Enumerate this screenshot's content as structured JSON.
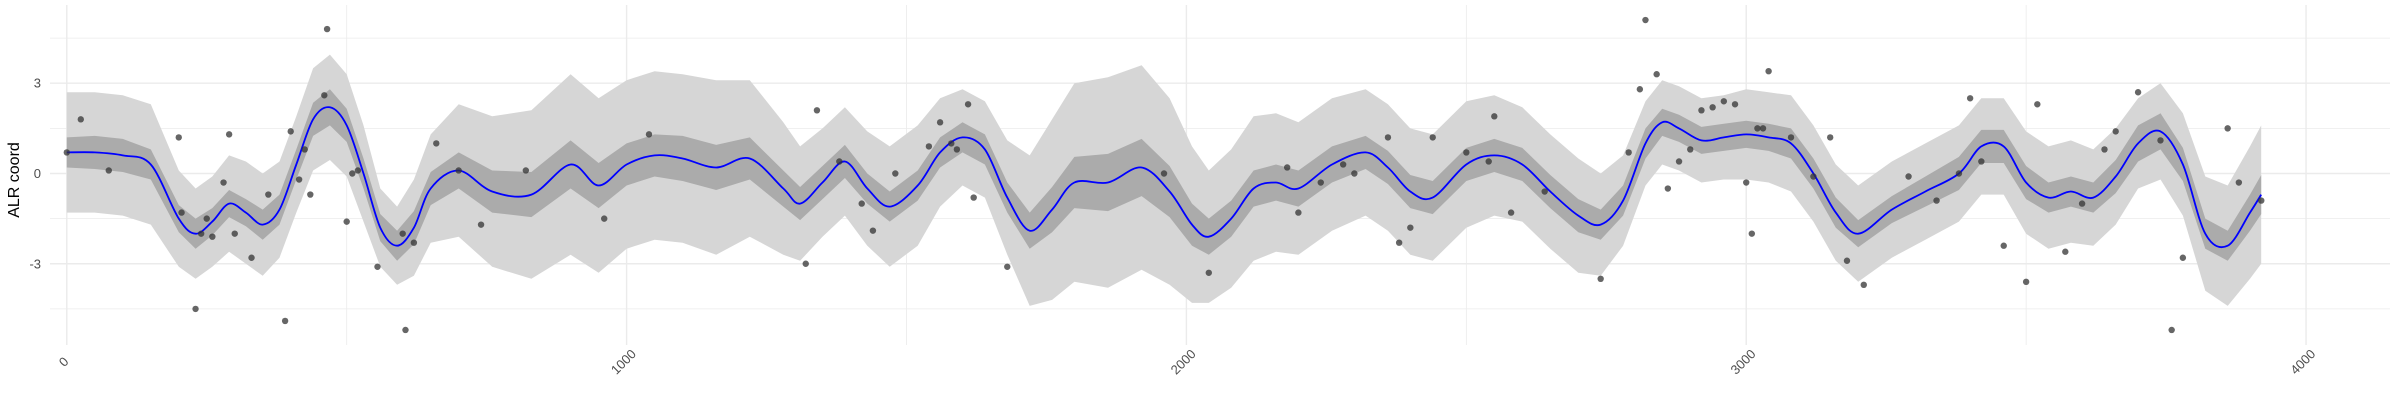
{
  "chart_data": {
    "type": "line",
    "title": "",
    "xlabel": "",
    "ylabel": "ALR coord",
    "xlim": [
      -30,
      4150
    ],
    "ylim": [
      -5.7,
      5.6
    ],
    "x_ticks": [
      0,
      1000,
      2000,
      3000,
      4000
    ],
    "x_tick_labels": [
      "0",
      "1000",
      "2000",
      "3000",
      "4000"
    ],
    "y_ticks": [
      -3,
      0,
      3
    ],
    "y_tick_labels": [
      "-3",
      "0",
      "3"
    ],
    "grid": true,
    "legend": "none",
    "colors": {
      "line": "#0000ff",
      "inner_band": "#ababab",
      "outer_band": "#d6d6d6",
      "points": "#333333",
      "grid": "#ebebeb"
    },
    "series": [
      {
        "kind": "mean",
        "x": [
          0,
          50,
          100,
          150,
          200,
          230,
          260,
          290,
          320,
          350,
          380,
          410,
          440,
          470,
          500,
          530,
          560,
          590,
          620,
          650,
          700,
          760,
          830,
          900,
          950,
          1000,
          1050,
          1100,
          1160,
          1220,
          1280,
          1310,
          1350,
          1390,
          1430,
          1470,
          1520,
          1560,
          1600,
          1640,
          1680,
          1720,
          1760,
          1800,
          1860,
          1920,
          1970,
          2010,
          2040,
          2080,
          2120,
          2160,
          2200,
          2260,
          2320,
          2360,
          2400,
          2440,
          2500,
          2550,
          2600,
          2650,
          2700,
          2740,
          2780,
          2820,
          2850,
          2880,
          2920,
          2960,
          3000,
          3040,
          3080,
          3120,
          3160,
          3200,
          3260,
          3320,
          3380,
          3420,
          3460,
          3500,
          3540,
          3580,
          3620,
          3660,
          3700,
          3740,
          3780,
          3820,
          3860,
          3900,
          3920
        ],
        "y": [
          0.7,
          0.7,
          0.6,
          0.3,
          -1.5,
          -2.0,
          -1.6,
          -1.0,
          -1.3,
          -1.7,
          -1.2,
          0.3,
          1.8,
          2.2,
          1.6,
          0.0,
          -1.8,
          -2.4,
          -1.8,
          -0.5,
          0.1,
          -0.6,
          -0.7,
          0.3,
          -0.4,
          0.3,
          0.6,
          0.5,
          0.2,
          0.5,
          -0.5,
          -1.0,
          -0.3,
          0.4,
          -0.5,
          -1.1,
          -0.4,
          0.7,
          1.2,
          0.8,
          -0.8,
          -1.9,
          -1.2,
          -0.3,
          -0.3,
          0.2,
          -0.6,
          -1.7,
          -2.1,
          -1.5,
          -0.5,
          -0.3,
          -0.5,
          0.3,
          0.7,
          0.2,
          -0.6,
          -0.8,
          0.3,
          0.6,
          0.3,
          -0.6,
          -1.4,
          -1.7,
          -0.9,
          1.0,
          1.7,
          1.5,
          1.1,
          1.2,
          1.3,
          1.2,
          1.0,
          0.0,
          -1.3,
          -2.0,
          -1.2,
          -0.6,
          0.0,
          0.9,
          0.9,
          -0.3,
          -0.8,
          -0.6,
          -0.8,
          -0.1,
          1.0,
          1.4,
          0.3,
          -2.0,
          -2.4,
          -1.3,
          -0.7
        ],
        "inner_half_width": [
          0.5,
          0.55,
          0.55,
          0.5,
          0.45,
          0.5,
          0.45,
          0.45,
          0.45,
          0.5,
          0.5,
          0.5,
          0.55,
          0.6,
          0.55,
          0.5,
          0.45,
          0.5,
          0.55,
          0.55,
          0.6,
          0.7,
          0.75,
          0.8,
          0.75,
          0.7,
          0.7,
          0.75,
          0.75,
          0.7,
          0.6,
          0.55,
          0.55,
          0.55,
          0.5,
          0.5,
          0.5,
          0.5,
          0.5,
          0.5,
          0.5,
          0.6,
          0.75,
          0.85,
          0.95,
          0.95,
          0.85,
          0.7,
          0.6,
          0.6,
          0.6,
          0.6,
          0.6,
          0.6,
          0.55,
          0.55,
          0.55,
          0.55,
          0.55,
          0.55,
          0.55,
          0.55,
          0.55,
          0.5,
          0.5,
          0.5,
          0.45,
          0.45,
          0.45,
          0.45,
          0.45,
          0.45,
          0.5,
          0.5,
          0.5,
          0.45,
          0.45,
          0.5,
          0.55,
          0.55,
          0.55,
          0.55,
          0.5,
          0.5,
          0.5,
          0.55,
          0.6,
          0.6,
          0.55,
          0.5,
          0.5,
          0.6,
          0.65
        ],
        "outer_half_width": [
          2.0,
          2.0,
          2.0,
          2.0,
          1.6,
          1.5,
          1.5,
          1.6,
          1.7,
          1.7,
          1.6,
          1.6,
          1.7,
          1.75,
          1.7,
          1.6,
          1.3,
          1.3,
          1.6,
          1.8,
          2.2,
          2.5,
          2.8,
          3.0,
          2.9,
          2.8,
          2.8,
          2.8,
          2.9,
          2.6,
          2.2,
          1.9,
          1.8,
          1.8,
          1.9,
          2.0,
          2.0,
          1.8,
          1.6,
          1.6,
          1.9,
          2.5,
          3.0,
          3.3,
          3.5,
          3.4,
          3.1,
          2.6,
          2.2,
          2.3,
          2.4,
          2.3,
          2.2,
          2.2,
          2.1,
          2.1,
          2.1,
          2.1,
          2.1,
          2.0,
          1.9,
          1.9,
          1.9,
          1.7,
          1.5,
          1.4,
          1.4,
          1.4,
          1.4,
          1.4,
          1.5,
          1.5,
          1.6,
          1.6,
          1.6,
          1.6,
          1.6,
          1.6,
          1.6,
          1.6,
          1.6,
          1.7,
          1.7,
          1.7,
          1.6,
          1.6,
          1.5,
          1.6,
          1.7,
          1.9,
          2.0,
          2.2,
          2.3
        ]
      },
      {
        "kind": "observations",
        "x": [
          0,
          25,
          75,
          200,
          205,
          230,
          240,
          250,
          260,
          280,
          290,
          300,
          330,
          360,
          390,
          400,
          415,
          425,
          435,
          460,
          465,
          500,
          510,
          520,
          555,
          600,
          605,
          620,
          660,
          700,
          740,
          820,
          960,
          1040,
          1320,
          1340,
          1380,
          1420,
          1440,
          1480,
          1540,
          1560,
          1580,
          1590,
          1610,
          1620,
          1680,
          1960,
          2040,
          2180,
          2200,
          2240,
          2280,
          2300,
          2360,
          2380,
          2400,
          2440,
          2500,
          2540,
          2550,
          2580,
          2640,
          2740,
          2790,
          2810,
          2820,
          2840,
          2860,
          2880,
          2900,
          2920,
          2940,
          2960,
          2980,
          3000,
          3010,
          3020,
          3030,
          3040,
          3080,
          3120,
          3150,
          3180,
          3210,
          3290,
          3340,
          3380,
          3400,
          3420,
          3460,
          3500,
          3520,
          3570,
          3600,
          3640,
          3660,
          3700,
          3740,
          3760,
          3780,
          3860,
          3880,
          3920
        ],
        "y": [
          0.7,
          1.8,
          0.1,
          1.2,
          -1.3,
          -4.5,
          -2.0,
          -1.5,
          -2.1,
          -0.3,
          1.3,
          -2.0,
          -2.8,
          -0.7,
          -4.9,
          1.4,
          -0.2,
          0.8,
          -0.7,
          2.6,
          4.8,
          -1.6,
          0.0,
          0.1,
          -3.1,
          -2.0,
          -5.2,
          -2.3,
          1.0,
          0.1,
          -1.7,
          0.1,
          -1.5,
          1.3,
          -3.0,
          2.1,
          0.4,
          -1.0,
          -1.9,
          0.0,
          0.9,
          1.7,
          1.0,
          0.8,
          2.3,
          -0.8,
          -3.1,
          0.0,
          -3.3,
          0.2,
          -1.3,
          -0.3,
          0.3,
          0.0,
          1.2,
          -2.3,
          -1.8,
          1.2,
          0.7,
          0.4,
          1.9,
          -1.3,
          -0.6,
          -3.5,
          0.7,
          2.8,
          5.1,
          3.3,
          -0.5,
          0.4,
          0.8,
          2.1,
          2.2,
          2.4,
          2.3,
          -0.3,
          -2.0,
          1.5,
          1.5,
          3.4,
          1.2,
          -0.1,
          1.2,
          -2.9,
          -3.7,
          -0.1,
          -0.9,
          0.0,
          2.5,
          0.4,
          -2.4,
          -3.6,
          2.3,
          -2.6,
          -1.0,
          0.8,
          1.4,
          2.7,
          1.1,
          -5.2,
          -2.8,
          1.5,
          -0.3,
          -0.9
        ]
      }
    ]
  }
}
